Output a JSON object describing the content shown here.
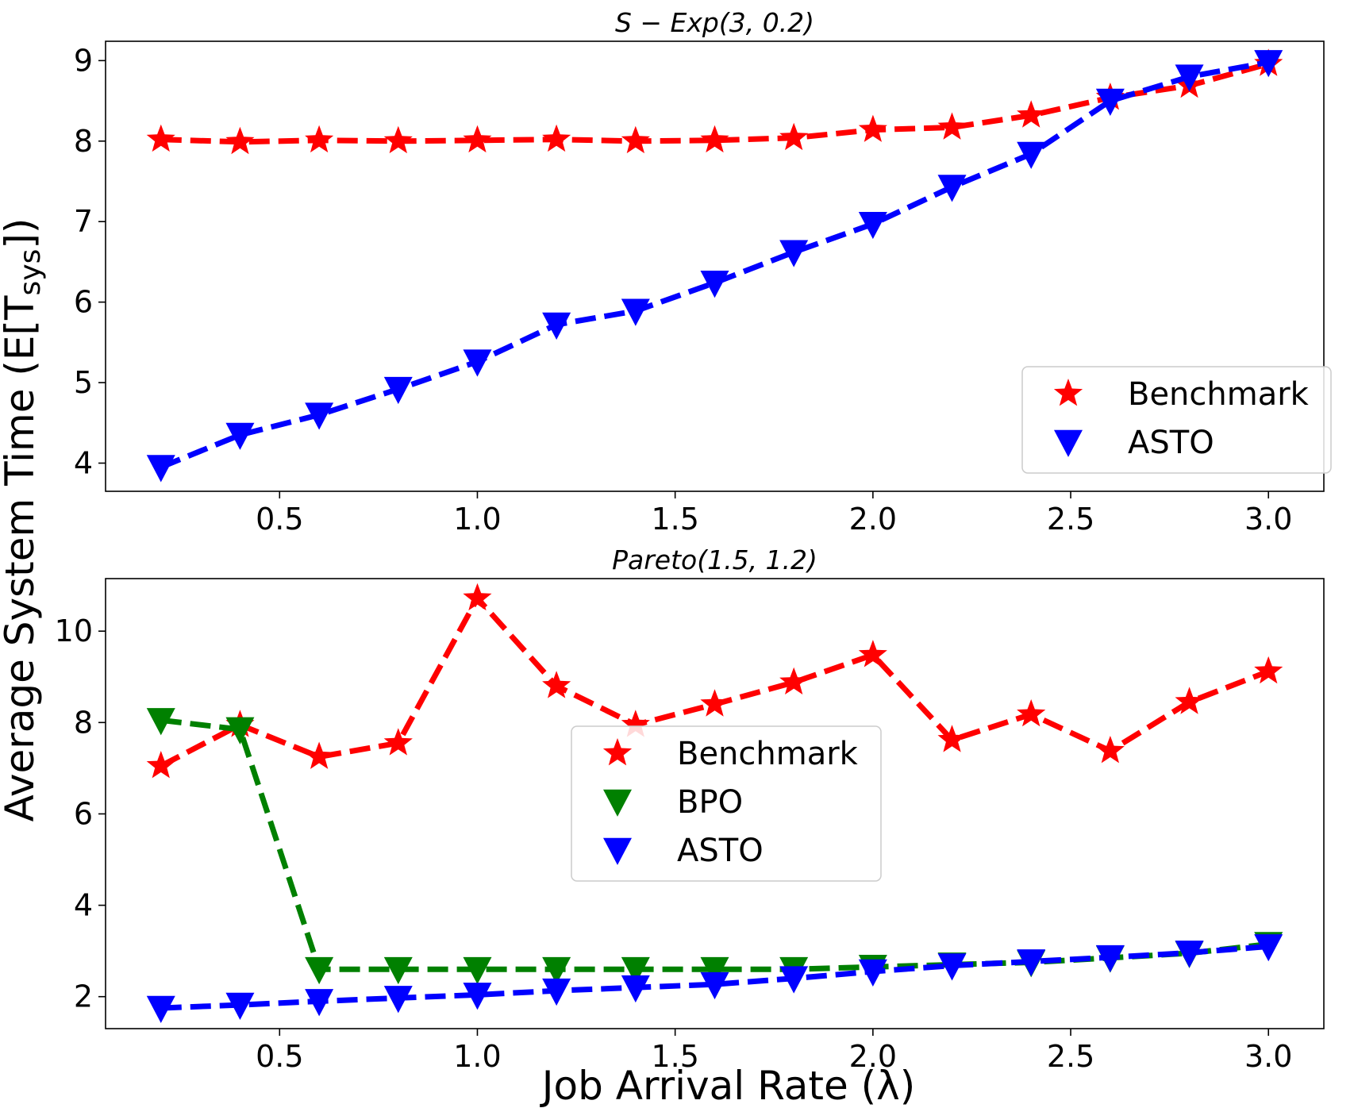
{
  "figure": {
    "ylabel": "Average System Time (E[T",
    "ylabel_sub": "sys",
    "ylabel_end": "])",
    "xlabel": "Job Arrival Rate (λ)"
  },
  "chart_data": [
    {
      "type": "line",
      "title": "S − Exp(3, 0.2)",
      "xlabel": "Job Arrival Rate (λ)",
      "ylabel": "Average System Time (E[Tsys])",
      "x": [
        0.2,
        0.4,
        0.6,
        0.8,
        1.0,
        1.2,
        1.4,
        1.6,
        1.8,
        2.0,
        2.2,
        2.4,
        2.6,
        2.8,
        3.0
      ],
      "xlim": [
        0.06,
        3.14
      ],
      "ylim": [
        3.65,
        9.24
      ],
      "xticks": [
        0.5,
        1.0,
        1.5,
        2.0,
        2.5,
        3.0
      ],
      "xtick_labels": [
        "0.5",
        "1.0",
        "1.5",
        "2.0",
        "2.5",
        "3.0"
      ],
      "yticks": [
        4,
        5,
        6,
        7,
        8,
        9
      ],
      "ytick_labels": [
        "4",
        "5",
        "6",
        "7",
        "8",
        "9"
      ],
      "legend_position": "lower-right",
      "series": [
        {
          "name": "Benchmark",
          "color": "#ff0000",
          "marker": "star",
          "values": [
            8.02,
            7.99,
            8.01,
            8.0,
            8.01,
            8.02,
            8.0,
            8.01,
            8.04,
            8.14,
            8.17,
            8.32,
            8.54,
            8.69,
            8.96
          ]
        },
        {
          "name": "ASTO",
          "color": "#0000ff",
          "marker": "triangle-down",
          "values": [
            3.95,
            4.35,
            4.6,
            4.92,
            5.26,
            5.72,
            5.89,
            6.24,
            6.62,
            6.97,
            7.43,
            7.84,
            8.5,
            8.8,
            8.98
          ]
        }
      ]
    },
    {
      "type": "line",
      "title": "Pareto(1.5, 1.2)",
      "xlabel": "Job Arrival Rate (λ)",
      "ylabel": "Average System Time (E[Tsys])",
      "x": [
        0.2,
        0.4,
        0.6,
        0.8,
        1.0,
        1.2,
        1.4,
        1.6,
        1.8,
        2.0,
        2.2,
        2.4,
        2.6,
        2.8,
        3.0
      ],
      "xlim": [
        0.06,
        3.14
      ],
      "ylim": [
        1.3,
        11.15
      ],
      "xticks": [
        0.5,
        1.0,
        1.5,
        2.0,
        2.5,
        3.0
      ],
      "xtick_labels": [
        "0.5",
        "1.0",
        "1.5",
        "2.0",
        "2.5",
        "3.0"
      ],
      "yticks": [
        2,
        4,
        6,
        8,
        10
      ],
      "ytick_labels": [
        "2",
        "4",
        "6",
        "8",
        "10"
      ],
      "legend_position": "center",
      "series": [
        {
          "name": "Benchmark",
          "color": "#ff0000",
          "marker": "star",
          "values": [
            7.05,
            7.95,
            7.25,
            7.55,
            10.72,
            8.8,
            7.95,
            8.4,
            8.88,
            9.48,
            7.62,
            8.18,
            7.38,
            8.45,
            9.12
          ]
        },
        {
          "name": "BPO",
          "color": "#008000",
          "marker": "triangle-down",
          "values": [
            8.05,
            7.85,
            2.6,
            2.6,
            2.6,
            2.6,
            2.6,
            2.6,
            2.6,
            2.65,
            2.7,
            2.75,
            2.85,
            2.95,
            3.15
          ]
        },
        {
          "name": "ASTO",
          "color": "#0000ff",
          "marker": "triangle-down",
          "values": [
            1.75,
            1.82,
            1.9,
            1.97,
            2.04,
            2.13,
            2.2,
            2.27,
            2.4,
            2.55,
            2.68,
            2.77,
            2.86,
            2.96,
            3.1
          ]
        }
      ]
    }
  ]
}
